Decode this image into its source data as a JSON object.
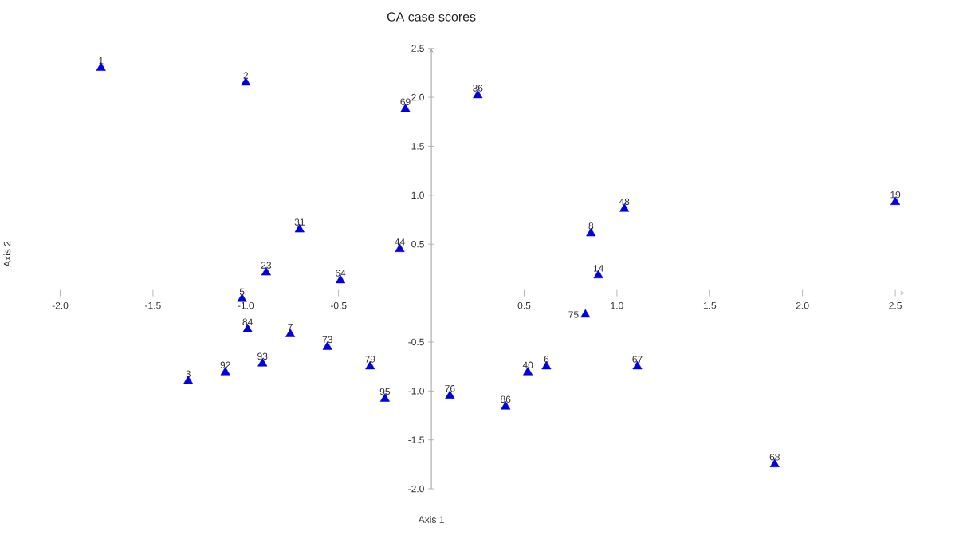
{
  "chart_data": {
    "type": "scatter",
    "title": "CA case scores",
    "xlabel": "Axis 1",
    "ylabel": "Axis 2",
    "x": [
      -1.78,
      -1.0,
      -0.14,
      0.25,
      2.5,
      1.04,
      0.86,
      -0.71,
      -0.17,
      -0.89,
      -0.49,
      0.9,
      -1.02,
      0.83,
      -0.99,
      -0.76,
      -0.56,
      -0.91,
      -1.11,
      -1.31,
      -0.33,
      -0.25,
      0.1,
      0.4,
      0.52,
      0.62,
      1.11,
      1.85
    ],
    "values": [
      2.3,
      2.15,
      1.88,
      2.02,
      0.93,
      0.86,
      0.61,
      0.65,
      0.45,
      0.21,
      0.13,
      0.18,
      -0.06,
      -0.22,
      -0.37,
      -0.42,
      -0.55,
      -0.72,
      -0.81,
      -0.9,
      -0.75,
      -1.08,
      -1.05,
      -1.16,
      -0.81,
      -0.75,
      -0.75,
      -1.75
    ],
    "color": "#0000dd",
    "marker": "triangle",
    "annotations": [
      {
        "text": "1",
        "x": -1.78,
        "y": 2.3
      },
      {
        "text": "2",
        "x": -1.0,
        "y": 2.15
      },
      {
        "text": "69",
        "x": -0.14,
        "y": 1.88
      },
      {
        "text": "36",
        "x": 0.25,
        "y": 2.02
      },
      {
        "text": "19",
        "x": 2.5,
        "y": 0.93
      },
      {
        "text": "48",
        "x": 1.04,
        "y": 0.86
      },
      {
        "text": "8",
        "x": 0.86,
        "y": 0.61
      },
      {
        "text": "31",
        "x": -0.71,
        "y": 0.65
      },
      {
        "text": "44",
        "x": -0.17,
        "y": 0.45
      },
      {
        "text": "23",
        "x": -0.89,
        "y": 0.21
      },
      {
        "text": "64",
        "x": -0.49,
        "y": 0.13
      },
      {
        "text": "14",
        "x": 0.9,
        "y": 0.18
      },
      {
        "text": "5",
        "x": -1.02,
        "y": -0.06
      },
      {
        "text": "75",
        "x": 0.83,
        "y": -0.22
      },
      {
        "text": "84",
        "x": -0.99,
        "y": -0.37
      },
      {
        "text": "7",
        "x": -0.76,
        "y": -0.42
      },
      {
        "text": "73",
        "x": -0.56,
        "y": -0.55
      },
      {
        "text": "93",
        "x": -0.91,
        "y": -0.72
      },
      {
        "text": "92",
        "x": -1.11,
        "y": -0.81
      },
      {
        "text": "3",
        "x": -1.31,
        "y": -0.9
      },
      {
        "text": "79",
        "x": -0.33,
        "y": -0.75
      },
      {
        "text": "95",
        "x": -0.25,
        "y": -1.08
      },
      {
        "text": "76",
        "x": 0.1,
        "y": -1.05
      },
      {
        "text": "86",
        "x": 0.4,
        "y": -1.16
      },
      {
        "text": "40",
        "x": 0.52,
        "y": -0.81
      },
      {
        "text": "6",
        "x": 0.62,
        "y": -0.75
      },
      {
        "text": "67",
        "x": 1.11,
        "y": -0.75
      },
      {
        "text": "68",
        "x": 1.85,
        "y": -1.75
      }
    ],
    "xlim": [
      -2.0,
      2.55
    ],
    "ylim": [
      -2.0,
      2.5
    ],
    "xticks": [
      {
        "value": -2.0,
        "label": "-2.0"
      },
      {
        "value": -1.5,
        "label": "-1.5"
      },
      {
        "value": -1.0,
        "label": "-1.0"
      },
      {
        "value": -0.5,
        "label": "-0.5"
      },
      {
        "value": 0.5,
        "label": "0.5"
      },
      {
        "value": 1.0,
        "label": "1.0"
      },
      {
        "value": 1.5,
        "label": "1.5"
      },
      {
        "value": 2.0,
        "label": "2.0"
      },
      {
        "value": 2.5,
        "label": "2.5"
      }
    ],
    "yticks": [
      {
        "value": -2.0,
        "label": "-2.0"
      },
      {
        "value": -1.5,
        "label": "-1.5"
      },
      {
        "value": -1.0,
        "label": "-1.0"
      },
      {
        "value": -0.5,
        "label": "-0.5"
      },
      {
        "value": 0.5,
        "label": "0.5"
      },
      {
        "value": 1.0,
        "label": "1.0"
      },
      {
        "value": 1.5,
        "label": "1.5"
      },
      {
        "value": 2.0,
        "label": "2.0"
      },
      {
        "value": 2.5,
        "label": "2.5"
      }
    ]
  }
}
